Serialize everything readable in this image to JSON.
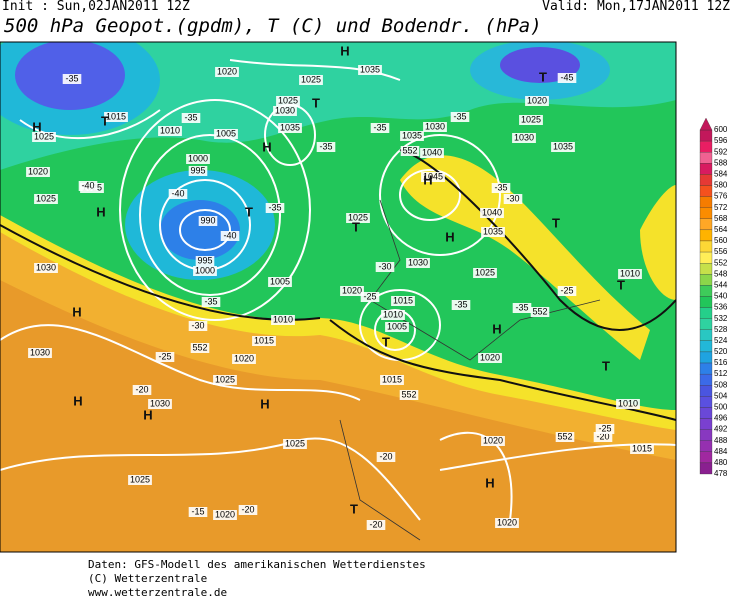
{
  "header": {
    "init": "Init : Sun,02JAN2011 12Z",
    "valid": "Valid: Mon,17JAN2011 12Z",
    "title": "500 hPa Geopot.(gpdm), T (C) und Bodendr. (hPa)"
  },
  "colorbar": {
    "ticks": [
      600,
      596,
      592,
      588,
      584,
      580,
      576,
      572,
      568,
      564,
      560,
      556,
      552,
      548,
      544,
      540,
      536,
      532,
      528,
      524,
      520,
      516,
      512,
      508,
      504,
      500,
      496,
      492,
      488,
      484,
      480,
      478
    ]
  },
  "map": {
    "labels": [
      "1020",
      "1025",
      "1035",
      "1015",
      "1010",
      "1025",
      "1025",
      "1030",
      "1035",
      "1005",
      "1000",
      "995",
      "990",
      "995",
      "1000",
      "1020",
      "1025",
      "1025",
      "1030",
      "1005",
      "1010",
      "1015",
      "1020",
      "1025",
      "1030",
      "1030",
      "1025",
      "1025",
      "1020",
      "1020",
      "1015",
      "1010",
      "1005",
      "1015",
      "1020",
      "1025",
      "1030",
      "1035",
      "1040",
      "1045",
      "1040",
      "1035",
      "1030",
      "1030",
      "1025",
      "1020",
      "1035",
      "1025",
      "1010",
      "1010",
      "1015",
      "1020",
      "1020",
      "-35",
      "-35",
      "-40",
      "-40",
      "-40",
      "-35",
      "-35",
      "-35",
      "-35",
      "-45",
      "-35",
      "-30",
      "-30",
      "-25",
      "-35",
      "-35",
      "-25",
      "-30",
      "-25",
      "-20",
      "-20",
      "-20",
      "-25",
      "-15",
      "-20",
      "-20",
      "-35",
      "H",
      "T",
      "H",
      "T",
      "T",
      "H",
      "H",
      "T",
      "H",
      "T",
      "H",
      "T",
      "H",
      "H",
      "T",
      "H",
      "H",
      "H",
      "T",
      "H",
      "T",
      "T",
      "552",
      "552",
      "552",
      "552",
      "552"
    ]
  },
  "footer": [
    "Daten: GFS-Modell des amerikanischen Wetterdienstes",
    "(C) Wetterzentrale",
    "www.wetterzentrale.de"
  ]
}
